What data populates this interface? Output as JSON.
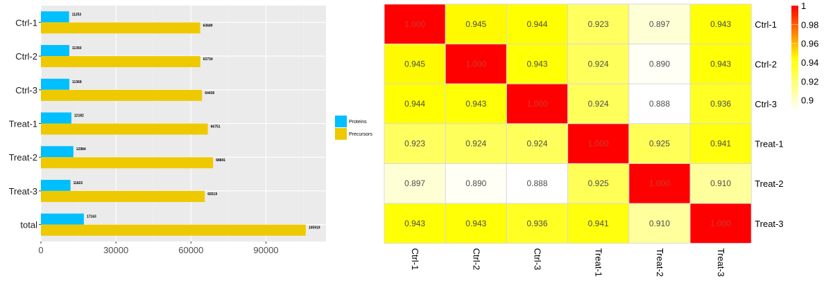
{
  "chart_data": [
    {
      "type": "bar",
      "orientation": "horizontal",
      "categories": [
        "Ctrl-1",
        "Ctrl-2",
        "Ctrl-3",
        "Treat-1",
        "Treat-2",
        "Treat-3",
        "total"
      ],
      "series": [
        {
          "name": "Proteins",
          "color": "#00BFFF",
          "values": [
            11253,
            11350,
            11368,
            12182,
            12984,
            11822,
            17163
          ]
        },
        {
          "name": "Precursors",
          "color": "#EEC900",
          "values": [
            63689,
            63734,
            64439,
            66751,
            68841,
            65519,
            105919
          ]
        }
      ],
      "xticks": [
        "0",
        "30000",
        "60000",
        "90000"
      ],
      "xlim": [
        0,
        114000
      ],
      "grid": true,
      "legend": "right"
    },
    {
      "type": "heatmap",
      "rows": [
        "Ctrl-1",
        "Ctrl-2",
        "Ctrl-3",
        "Treat-1",
        "Treat-2",
        "Treat-3"
      ],
      "cols": [
        "Ctrl-1",
        "Ctrl-2",
        "Ctrl-3",
        "Treat-1",
        "Treat-2",
        "Treat-3"
      ],
      "values": [
        [
          "1.000",
          "0.945",
          "0.944",
          "0.923",
          "0.897",
          "0.943"
        ],
        [
          "0.945",
          "1.000",
          "0.943",
          "0.924",
          "0.890",
          "0.943"
        ],
        [
          "0.944",
          "0.943",
          "1.000",
          "0.924",
          "0.888",
          "0.936"
        ],
        [
          "0.923",
          "0.924",
          "0.924",
          "1.000",
          "0.925",
          "0.941"
        ],
        [
          "0.897",
          "0.890",
          "0.888",
          "0.925",
          "1.000",
          "0.910"
        ],
        [
          "0.943",
          "0.943",
          "0.936",
          "0.941",
          "0.910",
          "1.000"
        ]
      ],
      "colorbar_ticks": [
        "1",
        "0.98",
        "0.96",
        "0.94",
        "0.92",
        "0.9"
      ],
      "colorbar_range": [
        0.888,
        1
      ],
      "colors": {
        "low": "#FFFFFF",
        "mid": "#FFFF00",
        "high": "#FF0000"
      }
    }
  ]
}
